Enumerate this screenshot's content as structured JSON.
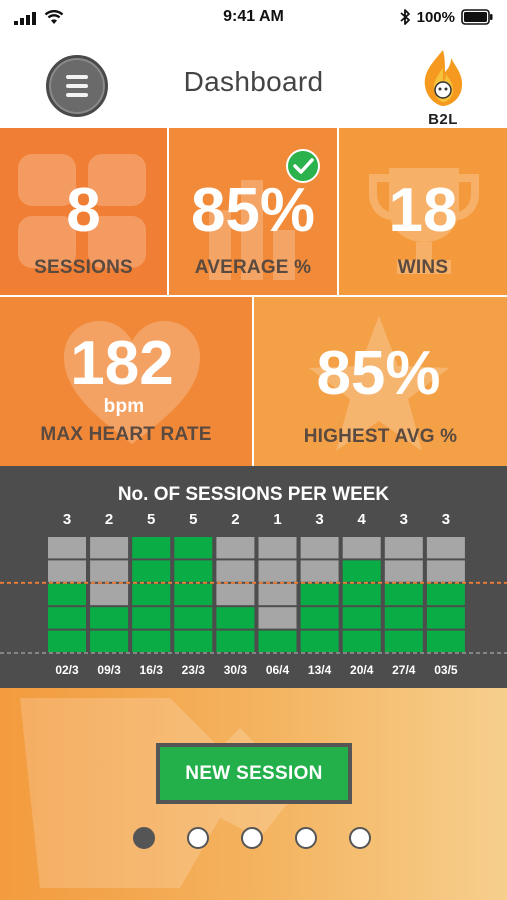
{
  "status_bar": {
    "time": "9:41 AM",
    "battery": "100%"
  },
  "header": {
    "title": "Dashboard",
    "logo_text": "B2L"
  },
  "tiles": {
    "sessions": {
      "value": "8",
      "label": "SESSIONS"
    },
    "average": {
      "value": "85%",
      "label": "AVERAGE %"
    },
    "wins": {
      "value": "18",
      "label": "WINS"
    },
    "max_heart_rate": {
      "value": "182",
      "unit": "bpm",
      "label": "MAX HEART RATE"
    },
    "highest_avg": {
      "value": "85%",
      "label": "HIGHEST AVG %"
    }
  },
  "colors": {
    "orange_dark": "#f07e33",
    "orange_mid": "#f39640",
    "orange_light": "#f4a947",
    "chart_bg": "#4d4d4d",
    "bar_green": "#0aac45",
    "bar_grey": "#a6a6a6",
    "target_line": "#f07e33"
  },
  "chart_data": {
    "type": "bar",
    "title": "No. OF SESSIONS PER WEEK",
    "categories": [
      "02/3",
      "09/3",
      "16/3",
      "23/3",
      "30/3",
      "06/4",
      "13/4",
      "20/4",
      "27/4",
      "03/5"
    ],
    "values": [
      3,
      2,
      5,
      5,
      2,
      1,
      3,
      4,
      3,
      3
    ],
    "ylim": [
      0,
      5
    ],
    "target": 3,
    "grid": false
  },
  "new_session_button": {
    "label": "NEW SESSION"
  },
  "pager": {
    "pages": 5,
    "active": 0
  }
}
